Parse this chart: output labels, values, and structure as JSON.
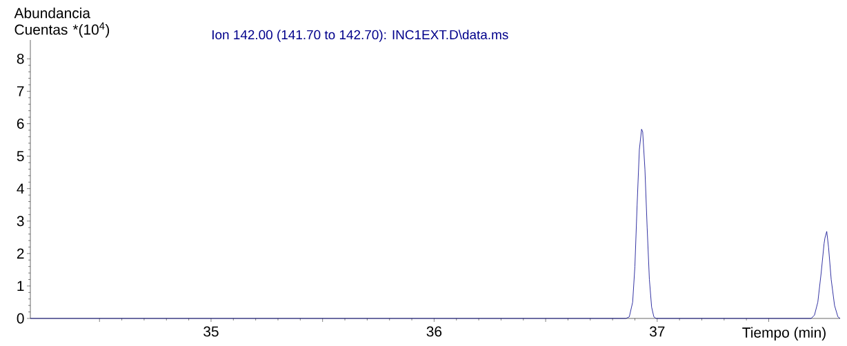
{
  "chart_data": {
    "type": "line",
    "title": "Ion 142.00 (141.70 to 142.70): INC1EXT.D\\data.ms",
    "xlabel": "Tiempo  (min)",
    "ylabel": "Abundancia Cuentas *(10$^{4}$)",
    "xlim": [
      34.19,
      37.82
    ],
    "ylim": [
      0,
      8.58
    ],
    "xticks": [
      {
        "value": 34.5,
        "label": null
      },
      35,
      {
        "value": 35.5,
        "label": null
      },
      36,
      {
        "value": 36.5,
        "label": null
      },
      37,
      {
        "value": 37.5,
        "label": null
      }
    ],
    "yticks": [
      0,
      1,
      2,
      3,
      4,
      5,
      6,
      7,
      8
    ],
    "grid": false,
    "marker": "none",
    "line_style": "solid",
    "series": [
      {
        "color": "#00008b",
        "x": [
          34.19,
          36.86,
          36.875,
          36.89,
          36.9,
          36.91,
          36.92,
          36.93,
          36.935,
          36.945,
          36.955,
          36.965,
          36.975,
          36.985,
          36.995,
          37.69,
          37.705,
          37.72,
          37.735,
          37.748,
          37.752,
          37.76,
          37.768,
          37.78,
          37.795,
          37.81,
          37.82
        ],
        "values": [
          0,
          0,
          0.05,
          0.5,
          1.6,
          3.5,
          5.2,
          5.83,
          5.75,
          4.6,
          2.8,
          1.2,
          0.35,
          0.05,
          0,
          0,
          0.1,
          0.5,
          1.4,
          2.3,
          2.48,
          2.68,
          2.2,
          1.2,
          0.4,
          0.05,
          0
        ]
      }
    ]
  }
}
